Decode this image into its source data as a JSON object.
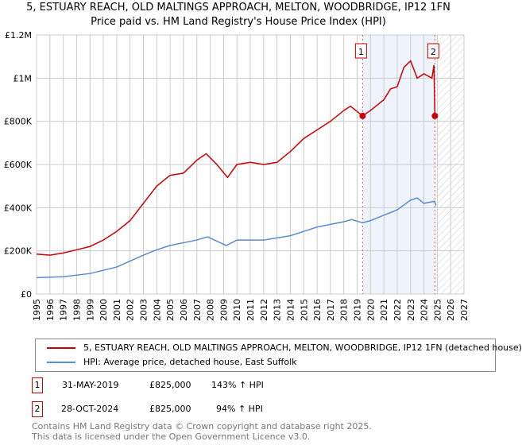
{
  "chart_data": {
    "type": "line",
    "title": "5, ESTUARY REACH, OLD MALTINGS APPROACH, MELTON, WOODBRIDGE, IP12 1FN",
    "subtitle": "Price paid vs. HM Land Registry's House Price Index (HPI)",
    "xlim": [
      1995,
      2027
    ],
    "ylim": [
      0,
      1200000
    ],
    "x_ticks": [
      "1995",
      "1996",
      "1997",
      "1998",
      "1999",
      "2000",
      "2001",
      "2002",
      "2003",
      "2004",
      "2005",
      "2006",
      "2007",
      "2008",
      "2009",
      "2010",
      "2011",
      "2012",
      "2013",
      "2014",
      "2015",
      "2016",
      "2017",
      "2018",
      "2019",
      "2020",
      "2021",
      "2022",
      "2023",
      "2024",
      "2025",
      "2026",
      "2027"
    ],
    "y_ticks": [
      {
        "v": 0,
        "label": "£0"
      },
      {
        "v": 200000,
        "label": "£200K"
      },
      {
        "v": 400000,
        "label": "£400K"
      },
      {
        "v": 600000,
        "label": "£600K"
      },
      {
        "v": 800000,
        "label": "£800K"
      },
      {
        "v": 1000000,
        "label": "£1M"
      },
      {
        "v": 1200000,
        "label": "£1.2M"
      }
    ],
    "grid": true,
    "series": [
      {
        "name": "5, ESTUARY REACH, OLD MALTINGS APPROACH, MELTON, WOODBRIDGE, IP12 1FN (detached house)",
        "color": "#cc0000",
        "x": [
          1995,
          1996,
          1997,
          1998,
          1999,
          2000,
          2001,
          2002,
          2003,
          2004,
          2005,
          2006,
          2007,
          2007.7,
          2008.5,
          2009.3,
          2010,
          2011,
          2012,
          2013,
          2014,
          2015,
          2016,
          2017,
          2018,
          2018.5,
          2019.41,
          2020,
          2021,
          2021.5,
          2022,
          2022.5,
          2023,
          2023.5,
          2024,
          2024.6,
          2024.75,
          2024.82,
          2025
        ],
        "y": [
          185000,
          180000,
          190000,
          205000,
          220000,
          250000,
          290000,
          340000,
          420000,
          500000,
          550000,
          560000,
          620000,
          650000,
          600000,
          540000,
          600000,
          610000,
          600000,
          610000,
          660000,
          720000,
          760000,
          800000,
          850000,
          870000,
          825000,
          850000,
          900000,
          950000,
          960000,
          1050000,
          1080000,
          1000000,
          1020000,
          1000000,
          1060000,
          825000,
          825000
        ]
      },
      {
        "name": "HPI: Average price, detached house, East Suffolk",
        "color": "#5b8bd0",
        "x": [
          1995,
          1997,
          1999,
          2001,
          2003,
          2004,
          2005,
          2007,
          2007.8,
          2009.2,
          2010,
          2012,
          2014,
          2016,
          2018,
          2018.6,
          2019.4,
          2020,
          2021,
          2022,
          2023,
          2023.5,
          2024,
          2024.8,
          2024.9
        ],
        "y": [
          76000,
          80000,
          95000,
          125000,
          180000,
          205000,
          225000,
          250000,
          265000,
          225000,
          250000,
          250000,
          270000,
          310000,
          335000,
          345000,
          330000,
          340000,
          365000,
          390000,
          435000,
          445000,
          420000,
          430000,
          410000
        ]
      }
    ],
    "annotations": [
      {
        "label": "1",
        "x": 2019.41,
        "y": 825000
      },
      {
        "label": "2",
        "x": 2024.82,
        "y": 825000
      }
    ],
    "shaded_range": [
      2019.41,
      2024.82
    ],
    "hatched_from": 2025,
    "legend_placement": "below"
  },
  "transactions": [
    {
      "num": "1",
      "date": "31-MAY-2019",
      "price": "£825,000",
      "hpi": "143% ↑ HPI"
    },
    {
      "num": "2",
      "date": "28-OCT-2024",
      "price": "£825,000",
      "hpi": "94% ↑ HPI"
    }
  ],
  "footer": [
    "Contains HM Land Registry data © Crown copyright and database right 2025.",
    "This data is licensed under the Open Government Licence v3.0."
  ]
}
